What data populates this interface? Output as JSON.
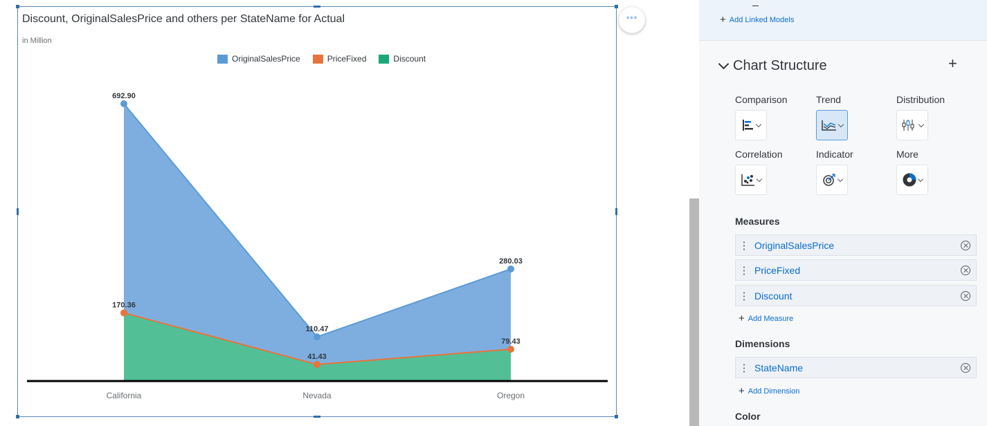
{
  "chart": {
    "title": "Discount, OriginalSalesPrice and others per StateName for Actual",
    "subtitle": "in Million",
    "more_label": "°°°",
    "legend": [
      {
        "label": "OriginalSalesPrice",
        "color": "#5b9bd5"
      },
      {
        "label": "PriceFixed",
        "color": "#e8743b"
      },
      {
        "label": "Discount",
        "color": "#19a979"
      }
    ]
  },
  "chart_data": {
    "type": "area",
    "title": "Discount, OriginalSalesPrice and others per StateName for Actual",
    "subtitle": "in Million",
    "categories": [
      "California",
      "Nevada",
      "Oregon"
    ],
    "series": [
      {
        "name": "OriginalSalesPrice",
        "color": "#5b9bd5",
        "values": [
          692.9,
          110.47,
          280.03
        ],
        "labels": [
          "692.90",
          "110.47",
          "280.03"
        ]
      },
      {
        "name": "PriceFixed",
        "color": "#e8743b",
        "values": [
          170.36,
          41.43,
          79.43
        ],
        "labels": [
          "170.36",
          "41.43",
          "79.43"
        ]
      },
      {
        "name": "Discount",
        "color": "#19a979",
        "values": [
          170.36,
          41.43,
          79.43
        ]
      }
    ],
    "ylim": [
      0,
      750
    ],
    "legend_position": "top",
    "grid": false
  },
  "panel": {
    "add_linked_models": "Add Linked Models",
    "section_title": "Chart Structure",
    "add_icon": "+",
    "categories": [
      {
        "label": "Comparison",
        "icon": "bar-chart-icon",
        "active": false
      },
      {
        "label": "Trend",
        "icon": "area-chart-icon",
        "active": true
      },
      {
        "label": "Distribution",
        "icon": "box-plot-icon",
        "active": false
      },
      {
        "label": "Correlation",
        "icon": "scatter-chart-icon",
        "active": false
      },
      {
        "label": "Indicator",
        "icon": "target-icon",
        "active": false
      },
      {
        "label": "More",
        "icon": "donut-chart-icon",
        "active": false
      }
    ],
    "measures_title": "Measures",
    "measures": [
      "OriginalSalesPrice",
      "PriceFixed",
      "Discount"
    ],
    "add_measure": "Add Measure",
    "dimensions_title": "Dimensions",
    "dimensions": [
      "StateName"
    ],
    "add_dimension": "Add Dimension",
    "color_title": "Color"
  }
}
